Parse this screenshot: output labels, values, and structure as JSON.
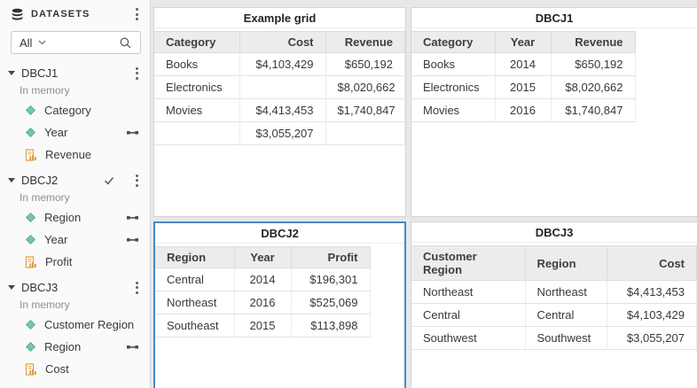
{
  "sidebar": {
    "title": "DATASETS",
    "filter": {
      "value": "All"
    },
    "datasets": [
      {
        "name": "DBCJ1",
        "status": "In memory",
        "selected": false,
        "fields": [
          {
            "label": "Category",
            "type": "dimension",
            "linked": false
          },
          {
            "label": "Year",
            "type": "dimension",
            "linked": true
          },
          {
            "label": "Revenue",
            "type": "measure",
            "linked": false
          }
        ]
      },
      {
        "name": "DBCJ2",
        "status": "In memory",
        "selected": true,
        "fields": [
          {
            "label": "Region",
            "type": "dimension",
            "linked": true
          },
          {
            "label": "Year",
            "type": "dimension",
            "linked": true
          },
          {
            "label": "Profit",
            "type": "measure",
            "linked": false
          }
        ]
      },
      {
        "name": "DBCJ3",
        "status": "In memory",
        "selected": false,
        "fields": [
          {
            "label": "Customer Region",
            "type": "dimension",
            "linked": false
          },
          {
            "label": "Region",
            "type": "dimension",
            "linked": true
          },
          {
            "label": "Cost",
            "type": "measure",
            "linked": false
          }
        ]
      }
    ]
  },
  "panels": [
    {
      "title": "Example grid",
      "selected": false,
      "columns": [
        {
          "label": "Category",
          "align": "left"
        },
        {
          "label": "Cost",
          "align": "right"
        },
        {
          "label": "Revenue",
          "align": "right"
        }
      ],
      "rows": [
        [
          "Books",
          "$4,103,429",
          "$650,192"
        ],
        [
          "Electronics",
          "",
          "$8,020,662"
        ],
        [
          "Movies",
          "$4,413,453",
          "$1,740,847"
        ],
        [
          "",
          "$3,055,207",
          ""
        ]
      ]
    },
    {
      "title": "DBCJ1",
      "selected": false,
      "columns": [
        {
          "label": "Category",
          "align": "left"
        },
        {
          "label": "Year",
          "align": "center"
        },
        {
          "label": "Revenue",
          "align": "right"
        }
      ],
      "rows": [
        [
          "Books",
          "2014",
          "$650,192"
        ],
        [
          "Electronics",
          "2015",
          "$8,020,662"
        ],
        [
          "Movies",
          "2016",
          "$1,740,847"
        ]
      ]
    },
    {
      "title": "DBCJ2",
      "selected": true,
      "columns": [
        {
          "label": "Region",
          "align": "left"
        },
        {
          "label": "Year",
          "align": "center"
        },
        {
          "label": "Profit",
          "align": "right"
        }
      ],
      "rows": [
        [
          "Central",
          "2014",
          "$196,301"
        ],
        [
          "Northeast",
          "2016",
          "$525,069"
        ],
        [
          "Southeast",
          "2015",
          "$113,898"
        ]
      ]
    },
    {
      "title": "DBCJ3",
      "selected": false,
      "columns": [
        {
          "label": "Customer Region",
          "align": "left"
        },
        {
          "label": "Region",
          "align": "left"
        },
        {
          "label": "Cost",
          "align": "right"
        }
      ],
      "rows": [
        [
          "Northeast",
          "Northeast",
          "$4,413,453"
        ],
        [
          "Central",
          "Central",
          "$4,103,429"
        ],
        [
          "Southwest",
          "Southwest",
          "$3,055,207"
        ]
      ]
    }
  ],
  "icons": {
    "header": "database-icon",
    "header_menu": "kebab-menu-icon",
    "filter_chevron": "chevron-down-icon",
    "filter_search": "search-icon",
    "group_expand": "caret-down-icon",
    "group_selected": "check-icon",
    "group_menu": "kebab-menu-icon",
    "dimension": "diamond-icon",
    "measure": "measure-bars-icon",
    "linked": "join-link-icon"
  },
  "colors": {
    "selection_border": "#4689c8",
    "dimension_icon": "#79c6a2",
    "dimension_icon_border": "#52ab84",
    "measure_icon": "#df9e43",
    "header_row_bg": "#ececec",
    "canvas_bg": "#e8e8e8"
  }
}
